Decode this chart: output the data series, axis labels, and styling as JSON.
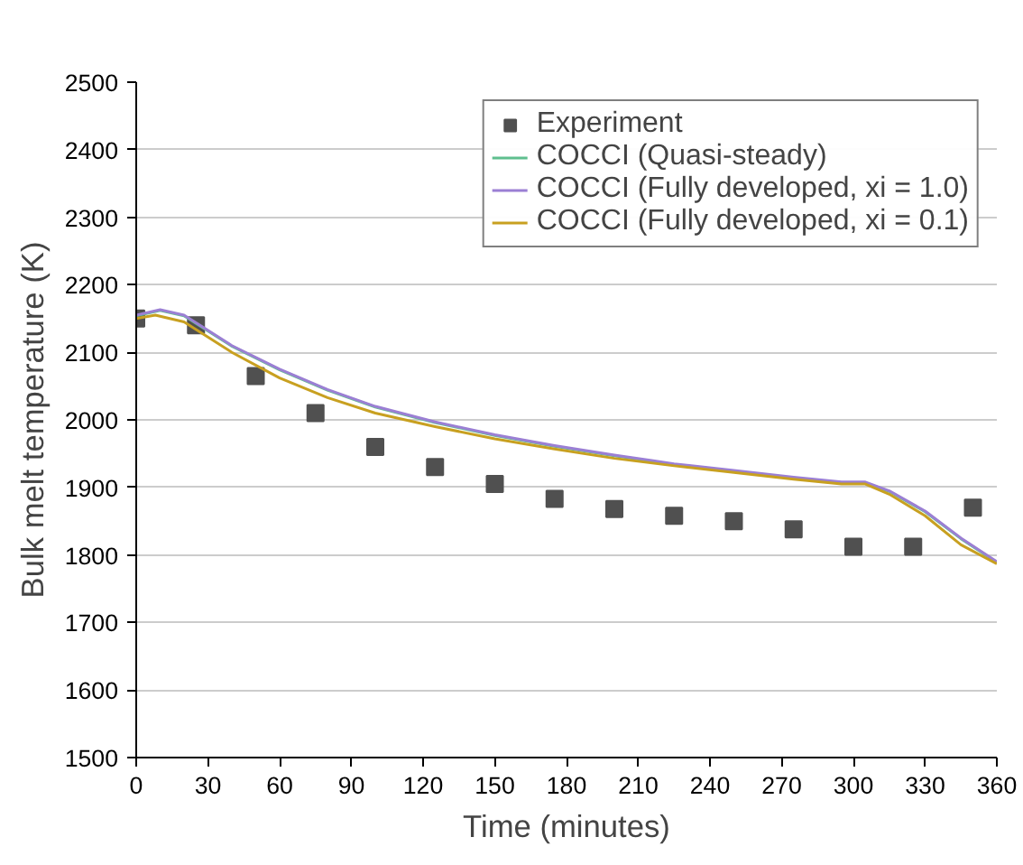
{
  "chart_data": {
    "type": "line",
    "xlabel": "Time (minutes)",
    "ylabel": "Bulk melt temperature (K)",
    "xlim": [
      0,
      360
    ],
    "xticks": [
      0,
      30,
      60,
      90,
      120,
      150,
      180,
      210,
      240,
      270,
      300,
      330,
      360
    ],
    "ylim": [
      1500,
      2500
    ],
    "yticks": [
      1500,
      1600,
      1700,
      1800,
      1900,
      2000,
      2100,
      2200,
      2300,
      2400,
      2500
    ],
    "grid": "y",
    "legend": "top right",
    "series": [
      {
        "name": "Experiment",
        "type": "scatter",
        "marker": "square",
        "color": "#505050",
        "x": [
          0,
          25,
          50,
          75,
          100,
          125,
          150,
          175,
          200,
          225,
          250,
          275,
          300,
          325,
          350
        ],
        "values": [
          2150,
          2140,
          2065,
          2010,
          1960,
          1930,
          1905,
          1883,
          1868,
          1858,
          1850,
          1838,
          1812,
          1812,
          1870
        ]
      },
      {
        "name": "COCCI (Quasi-steady)",
        "color": "#5fbf8f",
        "x": [
          0,
          10,
          20,
          40,
          60,
          80,
          100,
          125,
          150,
          175,
          200,
          225,
          250,
          275,
          295,
          305,
          315,
          330,
          345,
          360
        ],
        "values": [
          2154,
          2162,
          2154,
          2109,
          2074,
          2044,
          2019,
          1996,
          1977,
          1961,
          1947,
          1934,
          1924,
          1914,
          1907,
          1907,
          1894,
          1864,
          1824,
          1789
        ]
      },
      {
        "name": "COCCI (Fully developed, xi = 1.0)",
        "color": "#9b7fd4",
        "x": [
          0,
          10,
          20,
          40,
          60,
          80,
          100,
          125,
          150,
          175,
          200,
          225,
          250,
          275,
          295,
          305,
          315,
          330,
          345,
          360
        ],
        "values": [
          2155,
          2163,
          2155,
          2110,
          2075,
          2045,
          2020,
          1997,
          1978,
          1962,
          1948,
          1935,
          1925,
          1915,
          1908,
          1908,
          1895,
          1865,
          1825,
          1790
        ]
      },
      {
        "name": "COCCI (Fully developed, xi = 0.1)",
        "color": "#c8a020",
        "x": [
          0,
          8,
          20,
          40,
          60,
          80,
          100,
          125,
          150,
          175,
          200,
          225,
          250,
          275,
          295,
          305,
          315,
          330,
          345,
          360
        ],
        "values": [
          2150,
          2155,
          2145,
          2100,
          2062,
          2033,
          2010,
          1990,
          1972,
          1957,
          1943,
          1932,
          1922,
          1912,
          1905,
          1905,
          1890,
          1858,
          1815,
          1787
        ]
      }
    ]
  }
}
